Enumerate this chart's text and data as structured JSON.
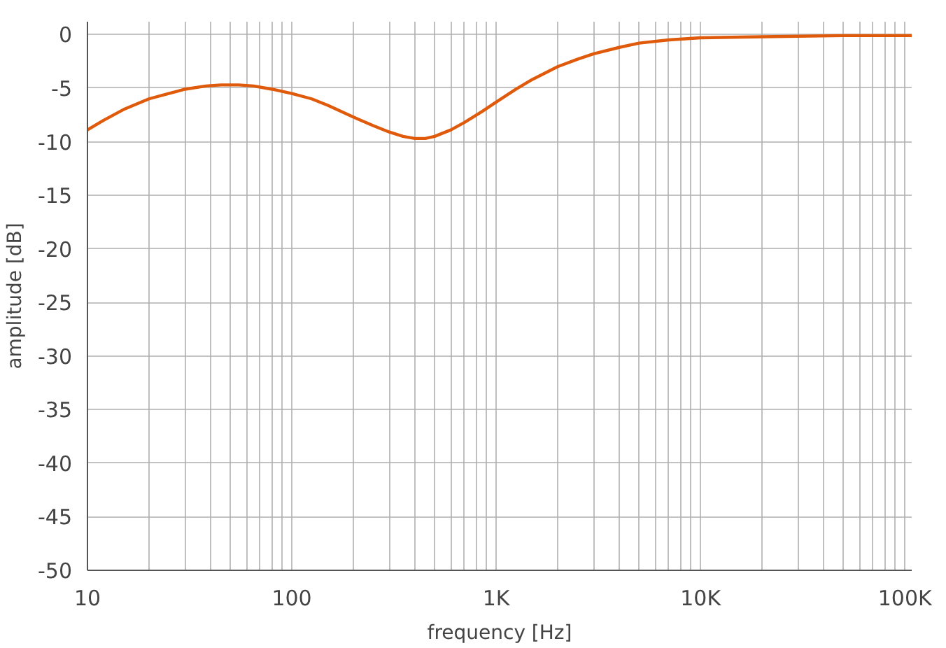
{
  "chart_data": {
    "type": "line",
    "xlabel": "frequency [Hz]",
    "ylabel": "amplitude [dB]",
    "log": "x",
    "grid": true,
    "xlim": [
      10,
      108000
    ],
    "ylim": [
      -50,
      1.2
    ],
    "xticks": [
      {
        "value": 10,
        "label": "10"
      },
      {
        "value": 20,
        "label": null
      },
      {
        "value": 30,
        "label": null
      },
      {
        "value": 40,
        "label": null
      },
      {
        "value": 50,
        "label": null
      },
      {
        "value": 60,
        "label": null
      },
      {
        "value": 70,
        "label": null
      },
      {
        "value": 80,
        "label": null
      },
      {
        "value": 90,
        "label": null
      },
      {
        "value": 100,
        "label": "100"
      },
      {
        "value": 200,
        "label": null
      },
      {
        "value": 300,
        "label": null
      },
      {
        "value": 400,
        "label": null
      },
      {
        "value": 500,
        "label": null
      },
      {
        "value": 600,
        "label": null
      },
      {
        "value": 700,
        "label": null
      },
      {
        "value": 800,
        "label": null
      },
      {
        "value": 900,
        "label": null
      },
      {
        "value": 1000,
        "label": "1K"
      },
      {
        "value": 2000,
        "label": null
      },
      {
        "value": 3000,
        "label": null
      },
      {
        "value": 4000,
        "label": null
      },
      {
        "value": 5000,
        "label": null
      },
      {
        "value": 6000,
        "label": null
      },
      {
        "value": 7000,
        "label": null
      },
      {
        "value": 8000,
        "label": null
      },
      {
        "value": 9000,
        "label": null
      },
      {
        "value": 10000,
        "label": "10K"
      },
      {
        "value": 20000,
        "label": null
      },
      {
        "value": 30000,
        "label": null
      },
      {
        "value": 40000,
        "label": null
      },
      {
        "value": 50000,
        "label": null
      },
      {
        "value": 60000,
        "label": null
      },
      {
        "value": 70000,
        "label": null
      },
      {
        "value": 80000,
        "label": null
      },
      {
        "value": 90000,
        "label": null
      },
      {
        "value": 100000,
        "label": "100K"
      }
    ],
    "yticks": [
      0,
      -5,
      -10,
      -15,
      -20,
      -25,
      -30,
      -35,
      -40,
      -45,
      -50
    ],
    "series": [
      {
        "color": "#e05a0c",
        "x": [
          10,
          12,
          15,
          20,
          25,
          30,
          38,
          45,
          55,
          65,
          80,
          100,
          125,
          150,
          200,
          250,
          300,
          350,
          400,
          450,
          500,
          600,
          700,
          850,
          1000,
          1250,
          1500,
          2000,
          2500,
          3000,
          4000,
          5000,
          7000,
          10000,
          20000,
          50000,
          108000
        ],
        "values": [
          -8.9,
          -8.0,
          -7.0,
          -6.0,
          -5.5,
          -5.1,
          -4.8,
          -4.7,
          -4.7,
          -4.8,
          -5.1,
          -5.5,
          -6.0,
          -6.6,
          -7.7,
          -8.5,
          -9.1,
          -9.5,
          -9.7,
          -9.7,
          -9.5,
          -8.9,
          -8.2,
          -7.2,
          -6.3,
          -5.1,
          -4.2,
          -3.0,
          -2.3,
          -1.8,
          -1.2,
          -0.8,
          -0.5,
          -0.3,
          -0.2,
          -0.1,
          -0.1
        ]
      }
    ]
  }
}
